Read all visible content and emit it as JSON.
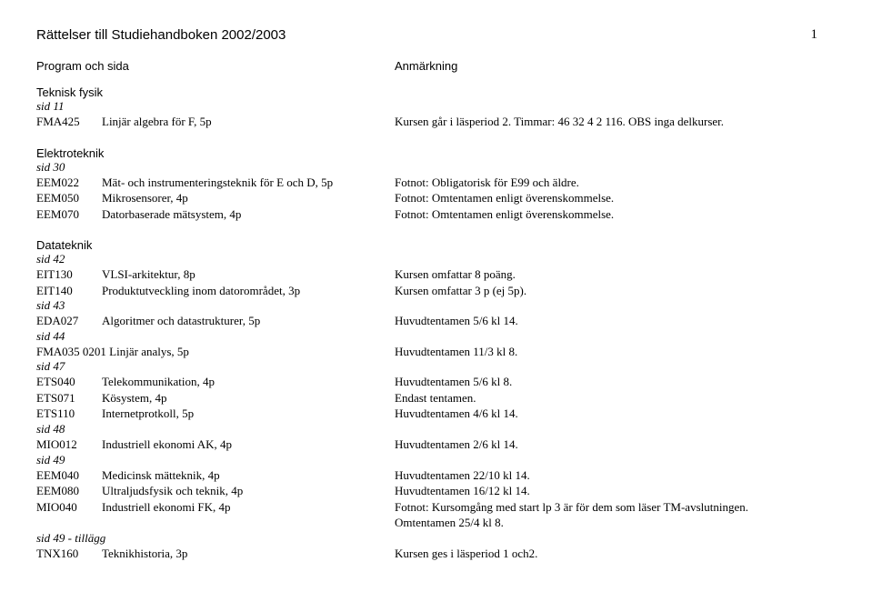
{
  "header": {
    "main_title": "Rättelser till Studiehandboken 2002/2003",
    "page_number": "1",
    "left_header": "Program och sida",
    "right_header": "Anmärkning"
  },
  "sections": [
    {
      "title": "Teknisk fysik",
      "groups": [
        {
          "sid": "sid 11",
          "rows": [
            {
              "code": "FMA425",
              "name": "Linjär algebra för F, 5p",
              "note": "Kursen går i läsperiod 2. Timmar: 46 32 4 2 116. OBS inga delkurser."
            }
          ]
        }
      ]
    },
    {
      "title": "Elektroteknik",
      "groups": [
        {
          "sid": "sid 30",
          "rows": [
            {
              "code": "EEM022",
              "name": "Mät- och instrumenteringsteknik för E och D, 5p",
              "note": "Fotnot: Obligatorisk för E99 och äldre."
            },
            {
              "code": "EEM050",
              "name": "Mikrosensorer, 4p",
              "note": "Fotnot: Omtentamen enligt överenskommelse."
            },
            {
              "code": "EEM070",
              "name": "Datorbaserade mätsystem, 4p",
              "note": "Fotnot: Omtentamen enligt överenskommelse."
            }
          ]
        }
      ]
    },
    {
      "title": "Datateknik",
      "groups": [
        {
          "sid": "sid 42",
          "rows": [
            {
              "code": "EIT130",
              "name": "VLSI-arkitektur, 8p",
              "note": "Kursen omfattar 8 poäng."
            },
            {
              "code": "EIT140",
              "name": "Produktutveckling inom datorområdet, 3p",
              "note": "Kursen omfattar 3 p (ej 5p)."
            }
          ]
        },
        {
          "sid": "sid 43",
          "rows": [
            {
              "code": "EDA027",
              "name": "Algoritmer och datastrukturer, 5p",
              "note": "Huvudtentamen 5/6 kl 14."
            }
          ]
        },
        {
          "sid": "sid 44",
          "rows": [
            {
              "wide": "FMA035 0201 Linjär analys, 5p",
              "note": "Huvudtentamen 11/3 kl 8."
            }
          ]
        },
        {
          "sid": "sid 47",
          "rows": [
            {
              "code": "ETS040",
              "name": "Telekommunikation, 4p",
              "note": "Huvudtentamen 5/6 kl 8."
            },
            {
              "code": "ETS071",
              "name": "Kösystem, 4p",
              "note": "Endast tentamen."
            },
            {
              "code": "ETS110",
              "name": "Internetprotkoll, 5p",
              "note": "Huvudtentamen 4/6 kl 14."
            }
          ]
        },
        {
          "sid": "sid 48",
          "rows": [
            {
              "code": "MIO012",
              "name": "Industriell ekonomi AK, 4p",
              "note": "Huvudtentamen 2/6 kl 14."
            }
          ]
        },
        {
          "sid": "sid 49",
          "rows": [
            {
              "code": "EEM040",
              "name": "Medicinsk mätteknik, 4p",
              "note": "Huvudtentamen 22/10 kl 14."
            },
            {
              "code": "EEM080",
              "name": "Ultraljudsfysik och teknik, 4p",
              "note": "Huvudtentamen 16/12 kl 14."
            },
            {
              "code": "MIO040",
              "name": "Industriell ekonomi FK, 4p",
              "note": "Fotnot: Kursomgång med start lp 3 är för dem som läser TM-avslutningen."
            },
            {
              "code": "",
              "name": "",
              "note": "Omtentamen 25/4 kl 8."
            }
          ]
        },
        {
          "sid": "sid 49 - tillägg",
          "rows": [
            {
              "code": "TNX160",
              "name": "Teknikhistoria, 3p",
              "note": "Kursen ges i läsperiod 1 och2."
            }
          ]
        }
      ]
    }
  ]
}
